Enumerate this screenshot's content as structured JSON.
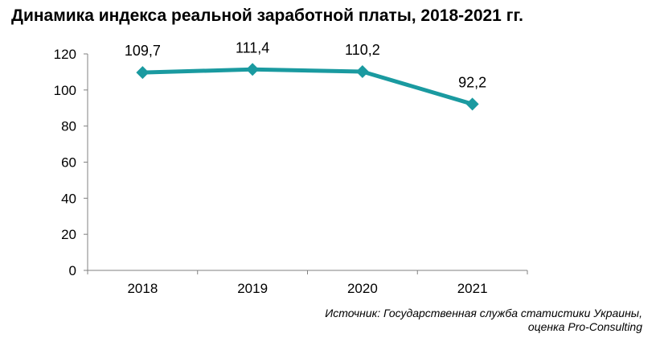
{
  "chart_data": {
    "type": "line",
    "title": "Динамика индекса реальной заработной платы, 2018-2021 гг.",
    "categories": [
      "2018",
      "2019",
      "2020",
      "2021"
    ],
    "series": [
      {
        "values": [
          109.7,
          111.4,
          110.2,
          92.2
        ],
        "color": "#1a9aa0"
      }
    ],
    "data_labels": [
      "109,7",
      "111,4",
      "110,2",
      "92,2"
    ],
    "ylim": [
      0,
      120
    ],
    "yticks": [
      0,
      20,
      40,
      60,
      80,
      100,
      120
    ],
    "grid": false,
    "legend": "none",
    "xlabel": "",
    "ylabel": ""
  },
  "source": {
    "line1": "Источник: Государственная служба статистики Украины,",
    "line2": "оценка Pro-Consulting"
  }
}
